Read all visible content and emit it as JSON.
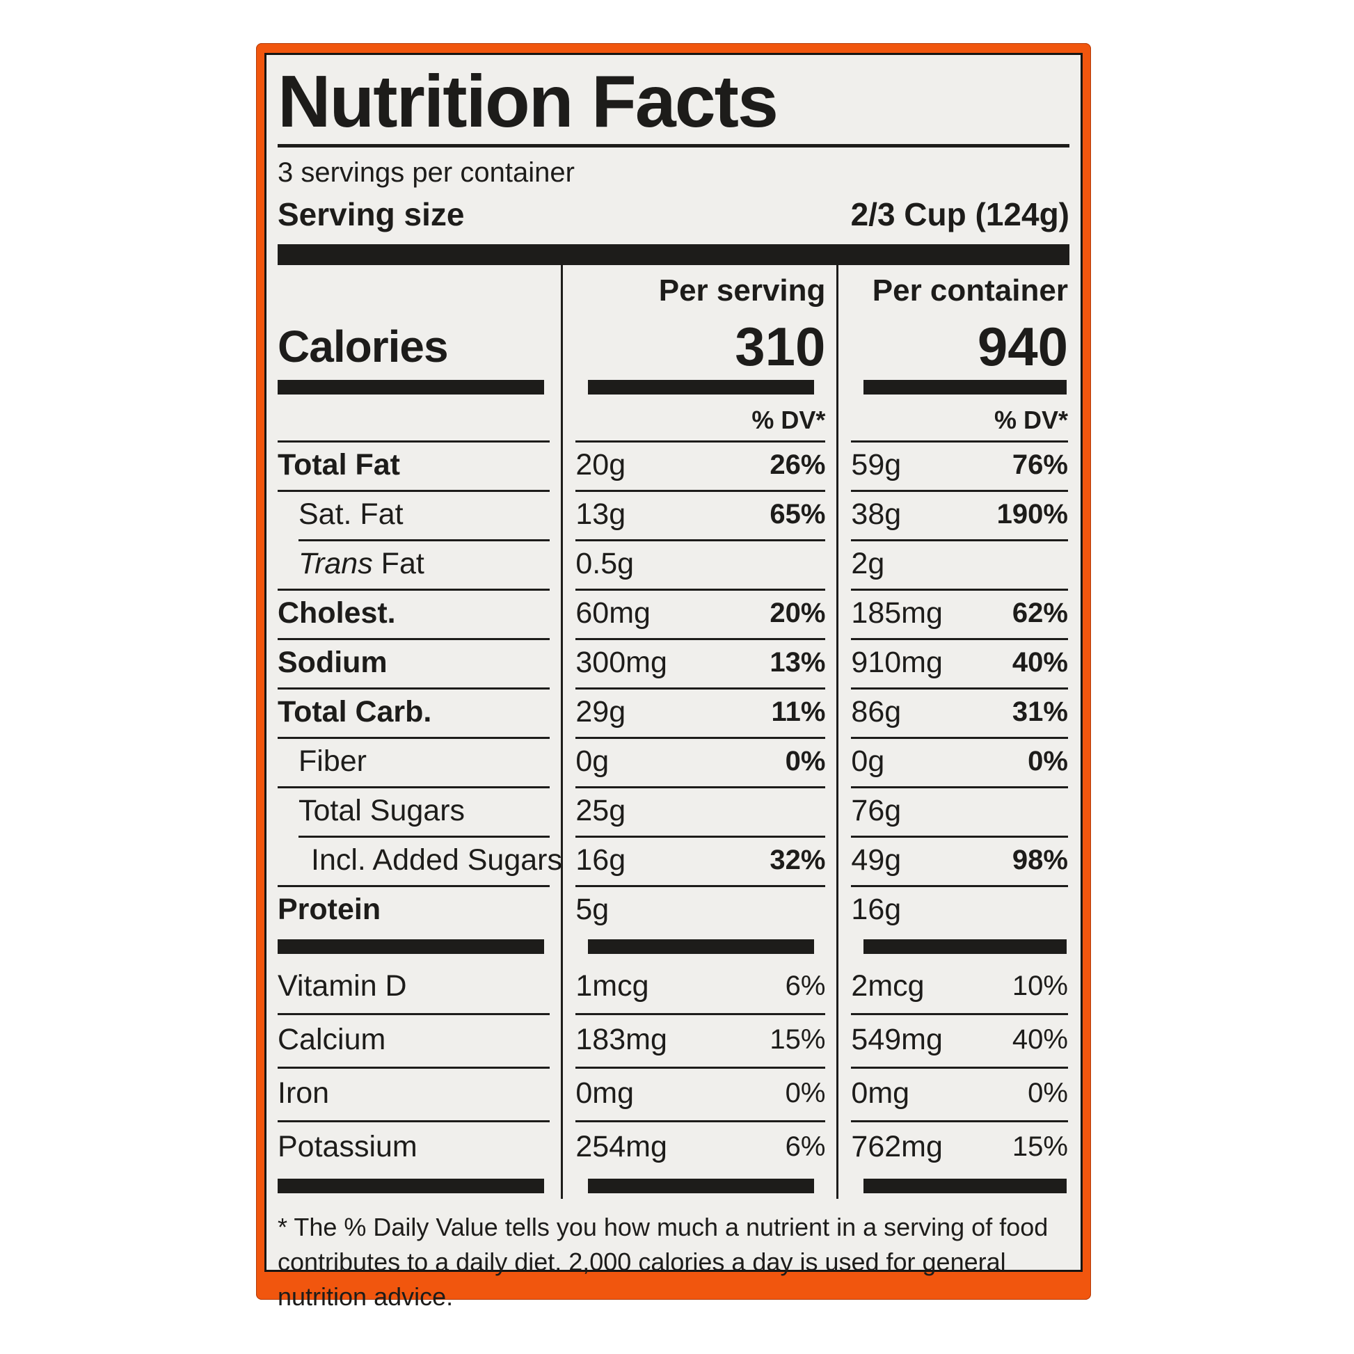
{
  "label": {
    "title": "Nutrition Facts",
    "servings_per_container": "3 servings per container",
    "serving_size_label": "Serving size",
    "serving_size_value": "2/3 Cup (124g)",
    "col_headers": {
      "per_serving": "Per serving",
      "per_container": "Per container"
    },
    "calories_label": "Calories",
    "calories": {
      "per_serving": "310",
      "per_container": "940"
    },
    "dv_header": "% DV*",
    "nutrient_rows": [
      {
        "name": "Total Fat",
        "bold": true,
        "indent": 0,
        "sep_indent": false,
        "per_serving": {
          "amount": "20g",
          "dv": "26%"
        },
        "per_container": {
          "amount": "59g",
          "dv": "76%"
        }
      },
      {
        "name": "Sat. Fat",
        "bold": false,
        "indent": 1,
        "sep_indent": false,
        "per_serving": {
          "amount": "13g",
          "dv": "65%"
        },
        "per_container": {
          "amount": "38g",
          "dv": "190%"
        }
      },
      {
        "name": "Fat",
        "name_italic_prefix": "Trans",
        "bold": false,
        "indent": 1,
        "sep_indent": true,
        "per_serving": {
          "amount": "0.5g",
          "dv": ""
        },
        "per_container": {
          "amount": "2g",
          "dv": ""
        }
      },
      {
        "name": "Cholest.",
        "bold": true,
        "indent": 0,
        "sep_indent": false,
        "per_serving": {
          "amount": "60mg",
          "dv": "20%"
        },
        "per_container": {
          "amount": "185mg",
          "dv": "62%"
        }
      },
      {
        "name": "Sodium",
        "bold": true,
        "indent": 0,
        "sep_indent": false,
        "per_serving": {
          "amount": "300mg",
          "dv": "13%"
        },
        "per_container": {
          "amount": "910mg",
          "dv": "40%"
        }
      },
      {
        "name": "Total Carb.",
        "bold": true,
        "indent": 0,
        "sep_indent": false,
        "per_serving": {
          "amount": "29g",
          "dv": "11%"
        },
        "per_container": {
          "amount": "86g",
          "dv": "31%"
        }
      },
      {
        "name": "Fiber",
        "bold": false,
        "indent": 1,
        "sep_indent": false,
        "per_serving": {
          "amount": "0g",
          "dv": "0%"
        },
        "per_container": {
          "amount": "0g",
          "dv": "0%"
        }
      },
      {
        "name": "Total Sugars",
        "bold": false,
        "indent": 1,
        "sep_indent": false,
        "per_serving": {
          "amount": "25g",
          "dv": ""
        },
        "per_container": {
          "amount": "76g",
          "dv": ""
        }
      },
      {
        "name": "Incl. Added Sugars",
        "bold": false,
        "indent": 2,
        "sep_indent": true,
        "per_serving": {
          "amount": "16g",
          "dv": "32%"
        },
        "per_container": {
          "amount": "49g",
          "dv": "98%"
        }
      },
      {
        "name": "Protein",
        "bold": true,
        "indent": 0,
        "sep_indent": false,
        "per_serving": {
          "amount": "5g",
          "dv": ""
        },
        "per_container": {
          "amount": "16g",
          "dv": ""
        }
      }
    ],
    "vitamin_rows": [
      {
        "name": "Vitamin D",
        "per_serving": {
          "amount": "1mcg",
          "dv": "6%"
        },
        "per_container": {
          "amount": "2mcg",
          "dv": "10%"
        }
      },
      {
        "name": "Calcium",
        "per_serving": {
          "amount": "183mg",
          "dv": "15%"
        },
        "per_container": {
          "amount": "549mg",
          "dv": "40%"
        }
      },
      {
        "name": "Iron",
        "per_serving": {
          "amount": "0mg",
          "dv": "0%"
        },
        "per_container": {
          "amount": "0mg",
          "dv": "0%"
        }
      },
      {
        "name": "Potassium",
        "per_serving": {
          "amount": "254mg",
          "dv": "6%"
        },
        "per_container": {
          "amount": "762mg",
          "dv": "15%"
        }
      }
    ],
    "footnote": "* The % Daily Value tells you how much a nutrient in a serving of food contributes to a daily diet. 2,000 calories a day is used for general nutrition advice."
  },
  "colors": {
    "accent_orange": "#f1560e",
    "label_background": "#f0efec",
    "ink": "#1d1c1a",
    "page_background": "#ffffff"
  }
}
